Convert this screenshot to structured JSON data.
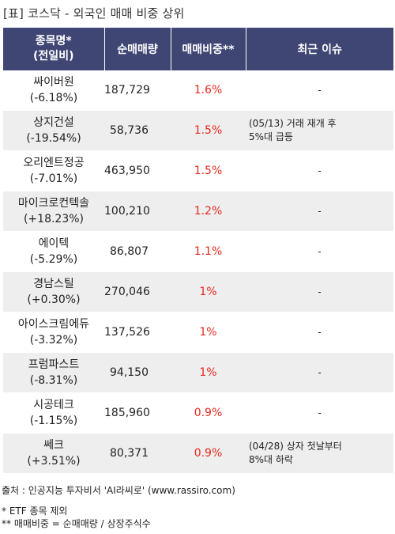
{
  "title": "[표] 코스닥 - 외국인 매매 비중 상위",
  "columns": {
    "name_line1": "종목명*",
    "name_line2": "(전일비)",
    "volume": "순매매량",
    "ratio": "매매비중**",
    "issue": "최근 이슈"
  },
  "rows": [
    {
      "name": "싸이버원",
      "change": "(-6.18%)",
      "volume": "187,729",
      "ratio": "1.6%",
      "issue": [
        "-"
      ]
    },
    {
      "name": "상지건설",
      "change": "(-19.54%)",
      "volume": "58,736",
      "ratio": "1.5%",
      "issue": [
        "(05/13) 거래 재개 후",
        "5%대 급등"
      ]
    },
    {
      "name": "오리엔트정공",
      "change": "(-7.01%)",
      "volume": "463,950",
      "ratio": "1.5%",
      "issue": [
        "-"
      ]
    },
    {
      "name": "마이크로컨텍솔",
      "change": "(+18.23%)",
      "volume": "100,210",
      "ratio": "1.2%",
      "issue": [
        "-"
      ]
    },
    {
      "name": "에이텍",
      "change": "(-5.29%)",
      "volume": "86,807",
      "ratio": "1.1%",
      "issue": [
        "-"
      ]
    },
    {
      "name": "경남스틸",
      "change": "(+0.30%)",
      "volume": "270,046",
      "ratio": "1%",
      "issue": [
        "-"
      ]
    },
    {
      "name": "아이스크림에듀",
      "change": "(-3.32%)",
      "volume": "137,526",
      "ratio": "1%",
      "issue": [
        "-"
      ]
    },
    {
      "name": "프럼파스트",
      "change": "(-8.31%)",
      "volume": "94,150",
      "ratio": "1%",
      "issue": [
        "-"
      ]
    },
    {
      "name": "시공테크",
      "change": "(-1.15%)",
      "volume": "185,960",
      "ratio": "0.9%",
      "issue": [
        "-"
      ]
    },
    {
      "name": "쎄크",
      "change": "(+3.51%)",
      "volume": "80,371",
      "ratio": "0.9%",
      "issue": [
        "(04/28) 상자 첫날부터",
        "8%대 하락"
      ]
    }
  ],
  "footer": {
    "source": "출처 : 인공지능 투자비서 'AI라씨로' (www.rassiro.com)",
    "note1": "* ETF 종목 제외",
    "note2": "** 매매비중 = 순매매량 / 상장주식수"
  },
  "colors": {
    "header_bg": "#3f4674",
    "ratio_text": "#e8281e",
    "stripe_bg": "#eeeeee"
  }
}
